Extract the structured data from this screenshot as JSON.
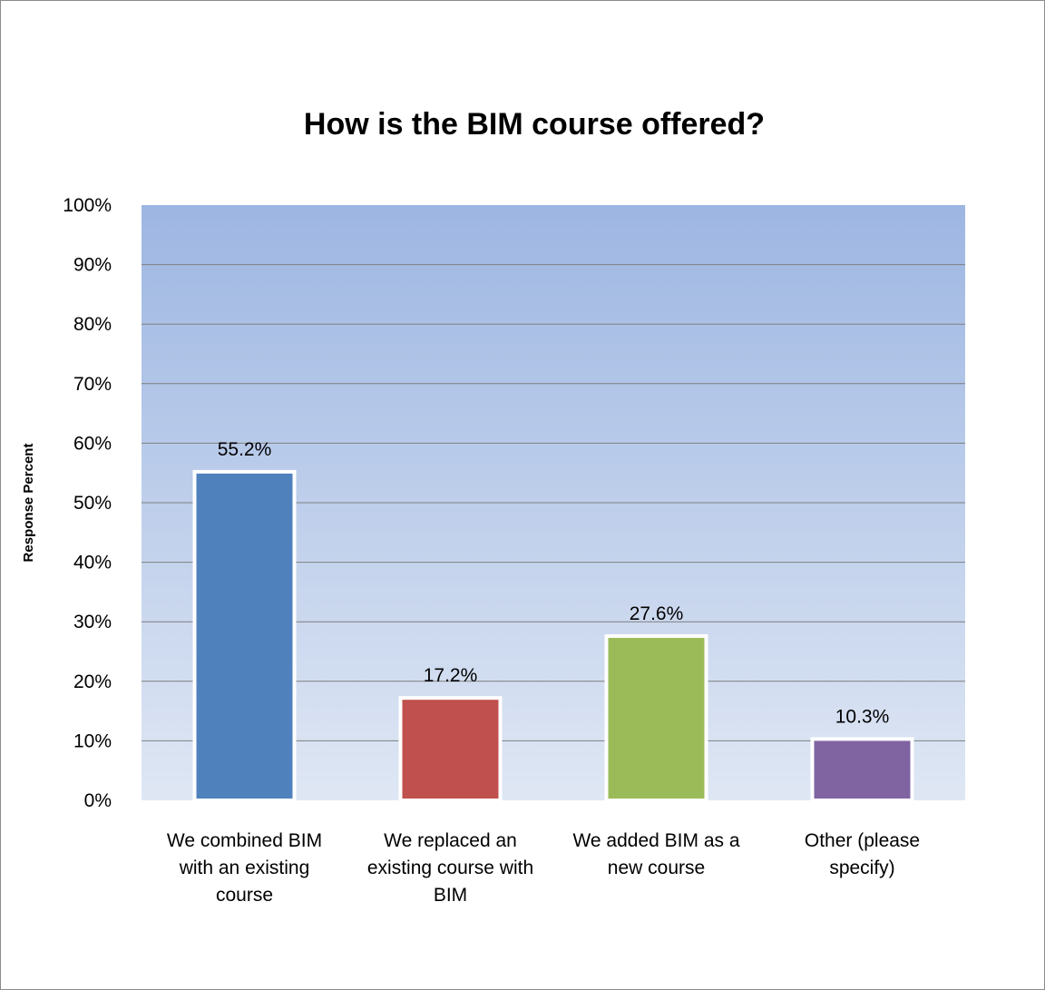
{
  "chart_data": {
    "type": "bar",
    "title": "How is the BIM course offered?",
    "xlabel": "",
    "ylabel": "Response Percent",
    "ylim": [
      0,
      100
    ],
    "y_ticks": [
      "0%",
      "10%",
      "20%",
      "30%",
      "40%",
      "50%",
      "60%",
      "70%",
      "80%",
      "90%",
      "100%"
    ],
    "categories": [
      [
        "We combined BIM",
        "with an existing",
        "course"
      ],
      [
        "We replaced an",
        "existing course with",
        "BIM"
      ],
      [
        "We added BIM as a",
        "new course"
      ],
      [
        "Other (please",
        "specify)"
      ]
    ],
    "values": [
      55.2,
      17.2,
      27.6,
      10.3
    ],
    "value_labels": [
      "55.2%",
      "17.2%",
      "27.6%",
      "10.3%"
    ],
    "bar_colors": [
      "#4f81bd",
      "#c0504d",
      "#9bbb59",
      "#8064a2"
    ],
    "plot_background_top": "#9db6e2",
    "plot_background_bottom": "#dfe7f4",
    "gridline_color": "#7f7f7f",
    "grid": true,
    "legend": "none"
  }
}
